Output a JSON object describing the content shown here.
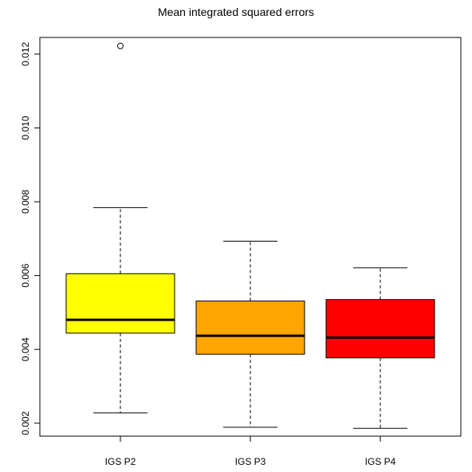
{
  "chart_data": {
    "type": "box",
    "title": "Mean integrated squared errors",
    "xlabel": "",
    "ylabel": "",
    "categories": [
      "IGS P2",
      "IGS P3",
      "IGS P4"
    ],
    "colors": [
      "#ffff00",
      "#ffa500",
      "#ff0000"
    ],
    "yticks": [
      0.002,
      0.004,
      0.006,
      0.008,
      0.01,
      0.012
    ],
    "ytick_labels": [
      "0.002",
      "0.004",
      "0.006",
      "0.008",
      "0.010",
      "0.012"
    ],
    "ylim": [
      0.00165,
      0.01245
    ],
    "series": [
      {
        "whisker_low": 0.00228,
        "q1": 0.00444,
        "median": 0.0048,
        "q3": 0.00605,
        "whisker_high": 0.00784,
        "outliers": [
          0.01222
        ]
      },
      {
        "whisker_low": 0.00189,
        "q1": 0.00387,
        "median": 0.00437,
        "q3": 0.00531,
        "whisker_high": 0.00693,
        "outliers": []
      },
      {
        "whisker_low": 0.00186,
        "q1": 0.00377,
        "median": 0.00432,
        "q3": 0.00535,
        "whisker_high": 0.00621,
        "outliers": []
      }
    ],
    "grid": false,
    "legend": "none"
  }
}
